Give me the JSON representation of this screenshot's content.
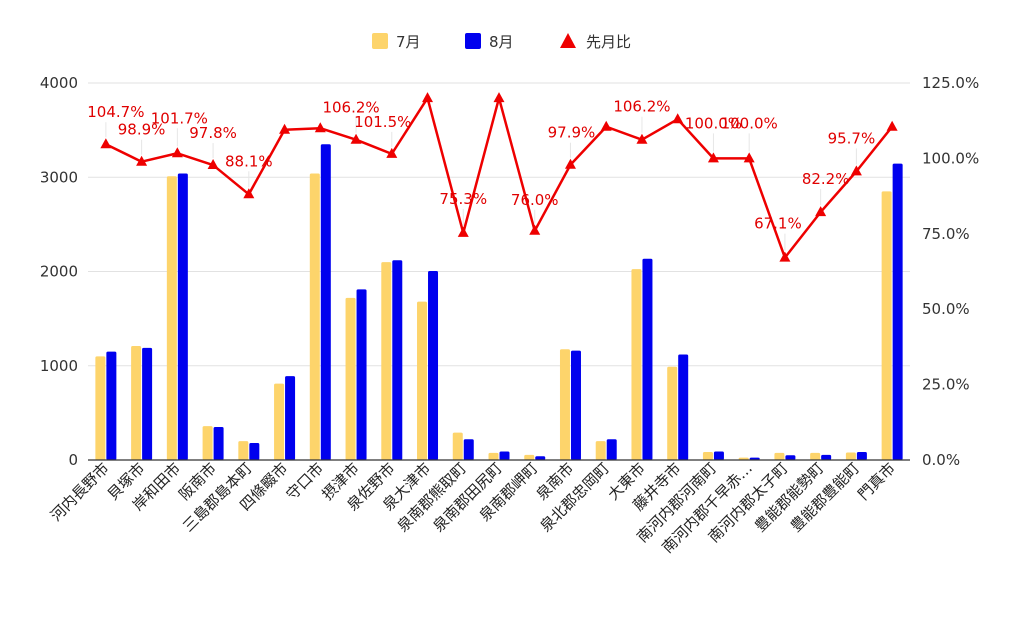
{
  "chart_data": {
    "type": "bar",
    "categories": [
      "河内長野市",
      "貝塚市",
      "岸和田市",
      "阪南市",
      "三島郡島本町",
      "四條畷市",
      "守口市",
      "摂津市",
      "泉佐野市",
      "泉大津市",
      "泉南郡熊取町",
      "泉南郡田尻町",
      "泉南郡岬町",
      "泉南市",
      "泉北郡忠岡町",
      "大東市",
      "藤井寺市",
      "南河内郡河南町",
      "南河内郡千早赤…",
      "南河内郡太子町",
      "豊能郡能勢町",
      "豊能郡豊能町",
      "門真市"
    ],
    "series": [
      {
        "name": "7月",
        "axis": "left",
        "type": "bar",
        "color": "#fdd46b",
        "values": [
          1100,
          1210,
          3010,
          360,
          200,
          810,
          3040,
          1720,
          2100,
          1680,
          290,
          75,
          55,
          1175,
          200,
          2025,
          990,
          85,
          25,
          75,
          75,
          80,
          2850
        ]
      },
      {
        "name": "8月",
        "axis": "left",
        "type": "bar",
        "color": "#0000ee",
        "values": [
          1150,
          1190,
          3040,
          350,
          180,
          890,
          3350,
          1810,
          2120,
          2005,
          220,
          90,
          40,
          1160,
          220,
          2135,
          1120,
          90,
          25,
          50,
          55,
          85,
          3145
        ]
      },
      {
        "name": "先月比",
        "axis": "right",
        "type": "line",
        "color": "#ee0000",
        "values": [
          104.7,
          98.9,
          101.7,
          97.8,
          88.1,
          109.5,
          110.0,
          106.2,
          101.5,
          120.0,
          75.3,
          120.0,
          76.0,
          97.9,
          110.5,
          106.2,
          113.0,
          100.0,
          100.0,
          67.1,
          82.2,
          95.7,
          110.5
        ],
        "labels": [
          "104.7%",
          "98.9%",
          "101.7%",
          "97.8%",
          "88.1%",
          "",
          "",
          "106.2%",
          "101.5%",
          "",
          "75.3%",
          "",
          "76.0%",
          "97.9%",
          "",
          "106.2%",
          "",
          "100.0%",
          "100.0%",
          "67.1%",
          "82.2%",
          "95.7%",
          ""
        ]
      }
    ],
    "y_left": {
      "ylim": [
        0,
        4000
      ],
      "ticks": [
        "0",
        "1000",
        "2000",
        "3000",
        "4000"
      ]
    },
    "y_right": {
      "ylim": [
        0,
        125
      ],
      "ticks": [
        "0.0%",
        "25.0%",
        "50.0%",
        "75.0%",
        "100.0%",
        "125.0%"
      ]
    },
    "legend": {
      "position": "top",
      "items": [
        "7月",
        "8月",
        "先月比"
      ]
    },
    "grid": "horizontal",
    "title": "",
    "xlabel": "",
    "ylabel": ""
  }
}
